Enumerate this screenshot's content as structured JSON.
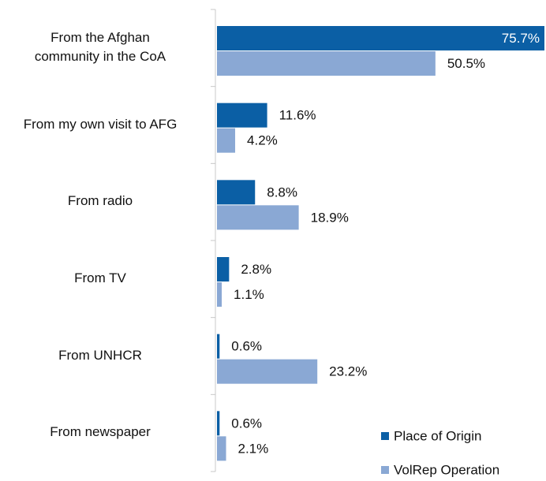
{
  "chart_data": {
    "type": "bar",
    "orientation": "horizontal",
    "categories": [
      "From the Afghan\ncommunity in the CoA",
      "From my own visit to AFG",
      "From radio",
      "From TV",
      "From UNHCR",
      "From newspaper"
    ],
    "series": [
      {
        "name": "Place of Origin",
        "color": "#0b5fa5",
        "values": [
          75.7,
          11.6,
          8.8,
          2.8,
          0.6,
          0.6
        ],
        "value_labels": [
          "75.7%",
          "11.6%",
          "8.8%",
          "2.8%",
          "0.6%",
          "0.6%"
        ]
      },
      {
        "name": "VolRep Operation",
        "color": "#8aa8d4",
        "values": [
          50.5,
          4.2,
          18.9,
          1.1,
          23.2,
          2.1
        ],
        "value_labels": [
          "50.5%",
          "4.2%",
          "18.9%",
          "1.1%",
          "23.2%",
          "2.1%"
        ]
      }
    ],
    "legend": "bottom right"
  }
}
